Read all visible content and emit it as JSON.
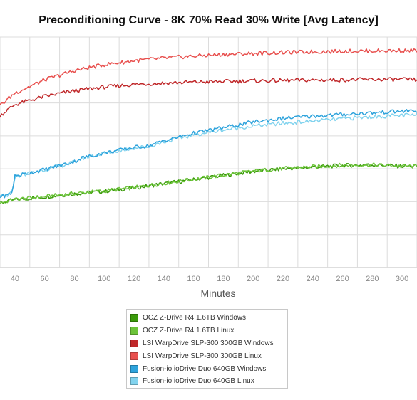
{
  "chart_data": {
    "type": "line",
    "title": "Preconditioning Curve - 8K 70% Read 30% Write [Avg Latency]",
    "xlabel": "Minutes",
    "ylabel": "",
    "xlim": [
      30,
      310
    ],
    "ylim": [
      0,
      7
    ],
    "x_ticks": [
      40,
      60,
      80,
      100,
      120,
      140,
      160,
      180,
      200,
      220,
      240,
      260,
      280,
      300
    ],
    "grid": true,
    "legend_position": "bottom",
    "series": [
      {
        "name": "OCZ Z-Drive R4 1.6TB Windows",
        "color": "#3a9a0a",
        "x": [
          30,
          40,
          60,
          80,
          100,
          120,
          140,
          160,
          180,
          200,
          220,
          240,
          260,
          280,
          300,
          310
        ],
        "y": [
          1.96,
          2.06,
          2.15,
          2.24,
          2.32,
          2.42,
          2.55,
          2.67,
          2.8,
          2.92,
          3.0,
          3.05,
          3.1,
          3.12,
          3.08,
          3.08
        ]
      },
      {
        "name": "OCZ Z-Drive R4 1.6TB Linux",
        "color": "#6cc43a",
        "x": [
          30,
          40,
          60,
          80,
          100,
          120,
          140,
          160,
          180,
          200,
          220,
          240,
          260,
          280,
          300,
          310
        ],
        "y": [
          1.97,
          2.07,
          2.16,
          2.25,
          2.33,
          2.43,
          2.56,
          2.68,
          2.81,
          2.93,
          3.01,
          3.06,
          3.11,
          3.12,
          3.08,
          3.07
        ]
      },
      {
        "name": "LSI WarpDrive SLP-300 300GB Windows",
        "color": "#c0282a",
        "x": [
          30,
          40,
          60,
          80,
          100,
          120,
          140,
          160,
          180,
          200,
          220,
          240,
          260,
          280,
          300,
          310
        ],
        "y": [
          4.62,
          4.95,
          5.2,
          5.37,
          5.48,
          5.56,
          5.6,
          5.63,
          5.65,
          5.67,
          5.68,
          5.69,
          5.7,
          5.71,
          5.71,
          5.7
        ]
      },
      {
        "name": "LSI WarpDrive SLP-300 300GB Linux",
        "color": "#e8504e",
        "x": [
          30,
          40,
          60,
          80,
          100,
          120,
          140,
          160,
          180,
          200,
          220,
          240,
          260,
          280,
          300,
          310
        ],
        "y": [
          4.92,
          5.3,
          5.7,
          5.98,
          6.16,
          6.28,
          6.36,
          6.42,
          6.47,
          6.5,
          6.53,
          6.55,
          6.57,
          6.58,
          6.59,
          6.59
        ]
      },
      {
        "name": "Fusion-io ioDrive Duo 640GB Windows",
        "color": "#2ea3dc",
        "x": [
          30,
          35,
          38,
          40,
          45,
          60,
          80,
          85,
          100,
          120,
          130,
          140,
          160,
          180,
          200,
          220,
          240,
          260,
          280,
          300,
          310
        ],
        "y": [
          2.16,
          2.2,
          2.28,
          2.78,
          2.83,
          2.98,
          3.22,
          3.33,
          3.48,
          3.65,
          3.7,
          3.85,
          4.08,
          4.25,
          4.42,
          4.53,
          4.6,
          4.65,
          4.7,
          4.75,
          4.76
        ]
      },
      {
        "name": "Fusion-io ioDrive Duo 640GB Linux",
        "color": "#82d3ee",
        "x": [
          30,
          35,
          38,
          40,
          45,
          60,
          80,
          85,
          100,
          120,
          130,
          140,
          160,
          180,
          200,
          220,
          240,
          260,
          280,
          300,
          310
        ],
        "y": [
          2.15,
          2.19,
          2.27,
          2.76,
          2.82,
          2.97,
          3.2,
          3.32,
          3.47,
          3.63,
          3.68,
          3.82,
          4.03,
          4.18,
          4.3,
          4.38,
          4.45,
          4.52,
          4.58,
          4.62,
          4.63
        ]
      }
    ]
  }
}
